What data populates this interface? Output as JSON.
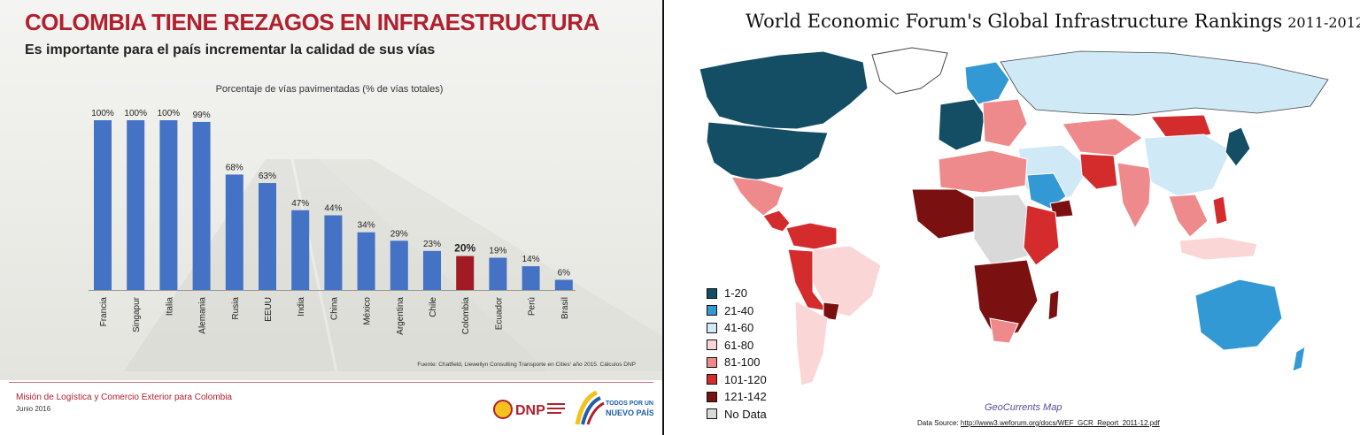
{
  "left_slide": {
    "title": "COLOMBIA TIENE REZAGOS EN INFRAESTRUCTURA",
    "subtitle": "Es importante para el país incrementar la calidad de sus vías",
    "footer_title": "Misión de Logística y Comercio Exterior para Colombia",
    "footer_date": "Junio 2016",
    "logo_dnp_text": "DNP",
    "logo_tp_text_1": "TODOS POR UN",
    "logo_tp_text_2": "NUEVO PAÍS",
    "colors": {
      "title": "#b1202e",
      "bar": "#4472c4",
      "highlight_bar": "#a21a24"
    }
  },
  "chart_data": {
    "type": "bar",
    "title": "Porcentaje de vías pavimentadas (% de vías totales)",
    "categories": [
      "Francia",
      "Singapur",
      "Italia",
      "Alemania",
      "Rusia",
      "EEUU",
      "India",
      "China",
      "México",
      "Argentina",
      "Chile",
      "Colombia",
      "Ecuador",
      "Perú",
      "Brasil"
    ],
    "values": [
      100,
      100,
      100,
      99,
      68,
      63,
      47,
      44,
      34,
      29,
      23,
      20,
      19,
      14,
      6
    ],
    "value_labels": [
      "100%",
      "100%",
      "100%",
      "99%",
      "68%",
      "63%",
      "47%",
      "44%",
      "34%",
      "29%",
      "23%",
      "20%",
      "19%",
      "14%",
      "6%"
    ],
    "highlight": "Colombia",
    "ylim": [
      0,
      100
    ],
    "source": "Fuente: Chatfield, Llewellyn Consulting Transporte en Cities' año 2015. Cálculos DNP"
  },
  "map": {
    "title": "World Economic Forum's Global Infrastructure Rankings",
    "year": "2011-2012",
    "credit": "GeoCurrents Map",
    "source_prefix": "Data Source: ",
    "source_url": "http://www3.weforum.org/docs/WEF_GCR_Report_2011-12.pdf",
    "legend": [
      {
        "label": "1-20",
        "color": "#134e65"
      },
      {
        "label": "21-40",
        "color": "#3399d4"
      },
      {
        "label": "41-60",
        "color": "#cfe9f7"
      },
      {
        "label": "61-80",
        "color": "#fbd6d6"
      },
      {
        "label": "81-100",
        "color": "#ee8a8c"
      },
      {
        "label": "101-120",
        "color": "#d42c2c"
      },
      {
        "label": "121-142",
        "color": "#7a1010"
      },
      {
        "label": "No Data",
        "color": "#d9d9d9"
      }
    ]
  }
}
